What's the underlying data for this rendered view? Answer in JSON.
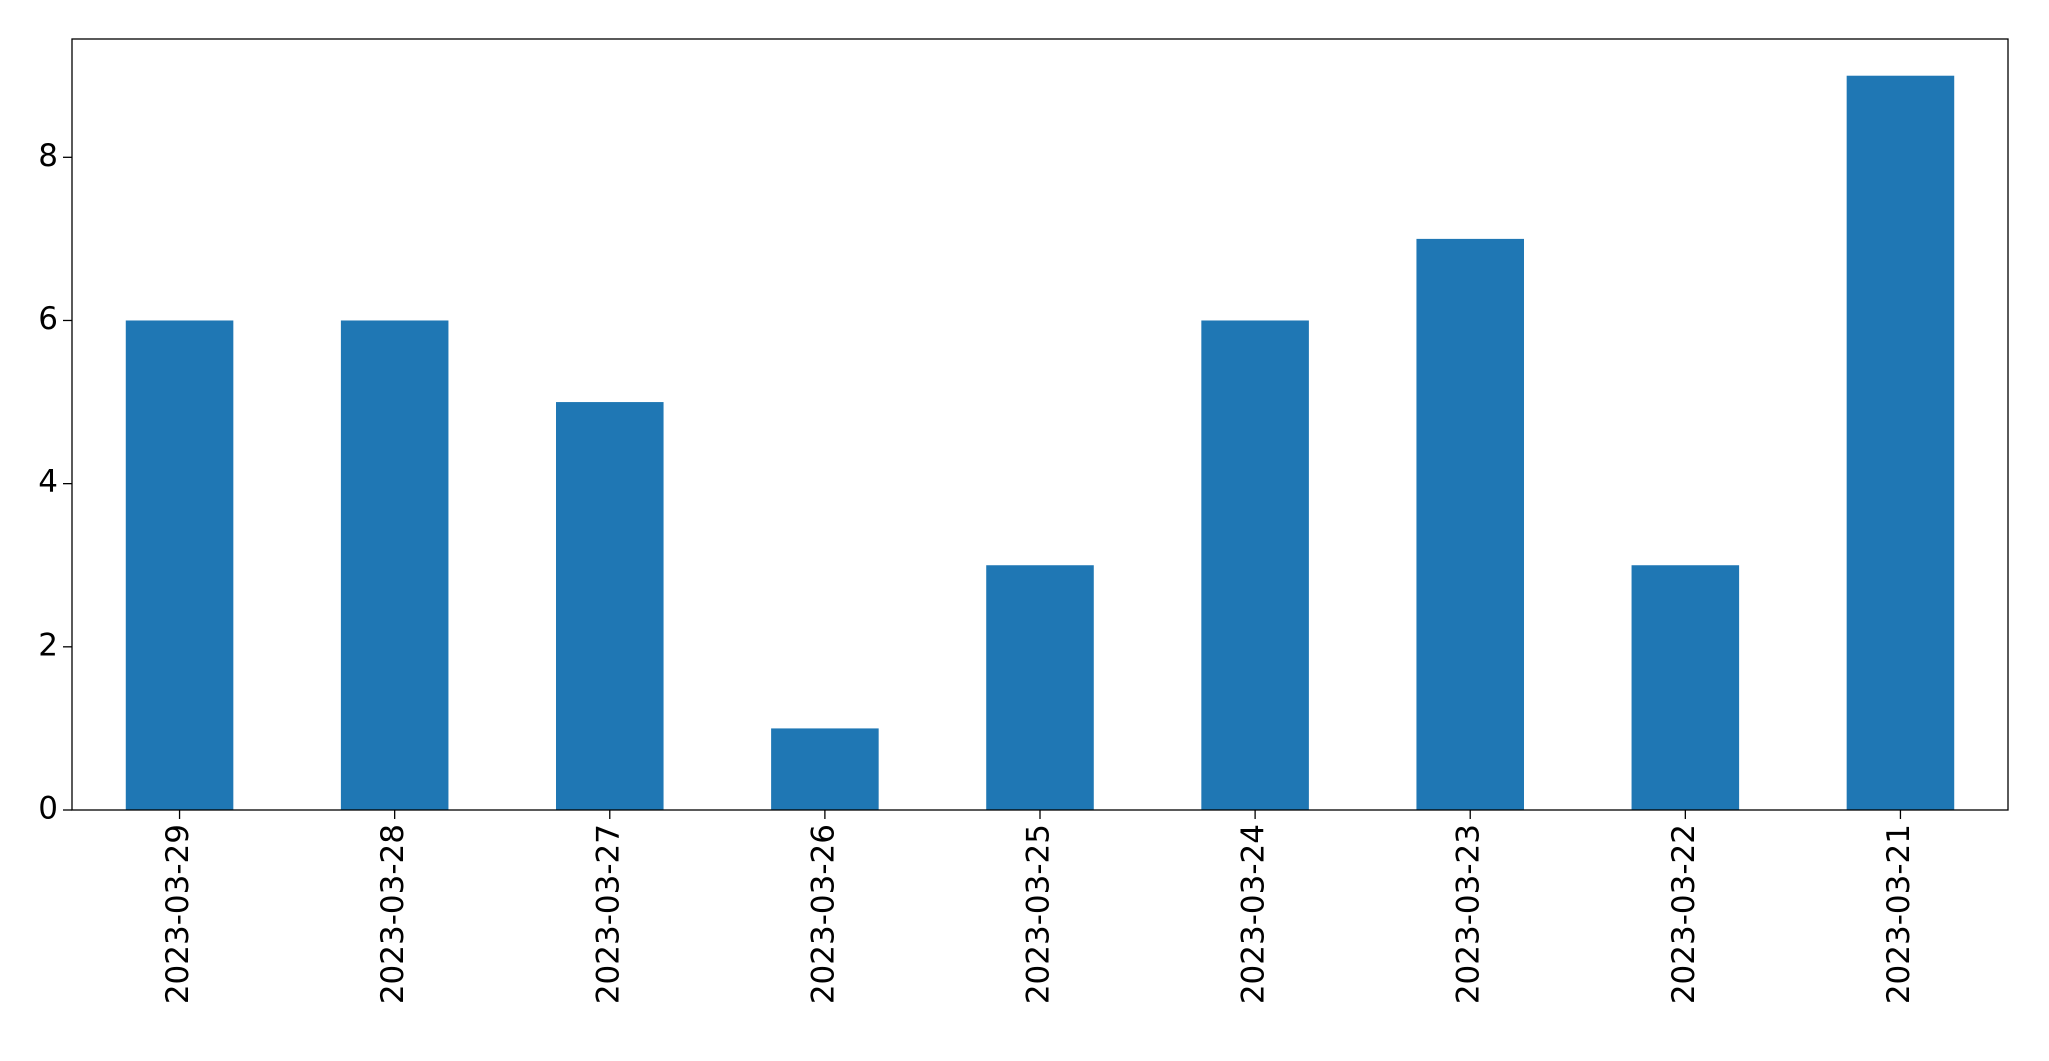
{
  "chart_data": {
    "type": "bar",
    "categories": [
      "2023-03-29",
      "2023-03-28",
      "2023-03-27",
      "2023-03-26",
      "2023-03-25",
      "2023-03-24",
      "2023-03-23",
      "2023-03-22",
      "2023-03-21"
    ],
    "values": [
      6,
      6,
      5,
      1,
      3,
      6,
      7,
      3,
      9
    ],
    "color": "#1f77b4",
    "ylim": [
      0,
      9.45
    ],
    "yticks": [
      0,
      2,
      4,
      6,
      8
    ],
    "grid": false
  }
}
